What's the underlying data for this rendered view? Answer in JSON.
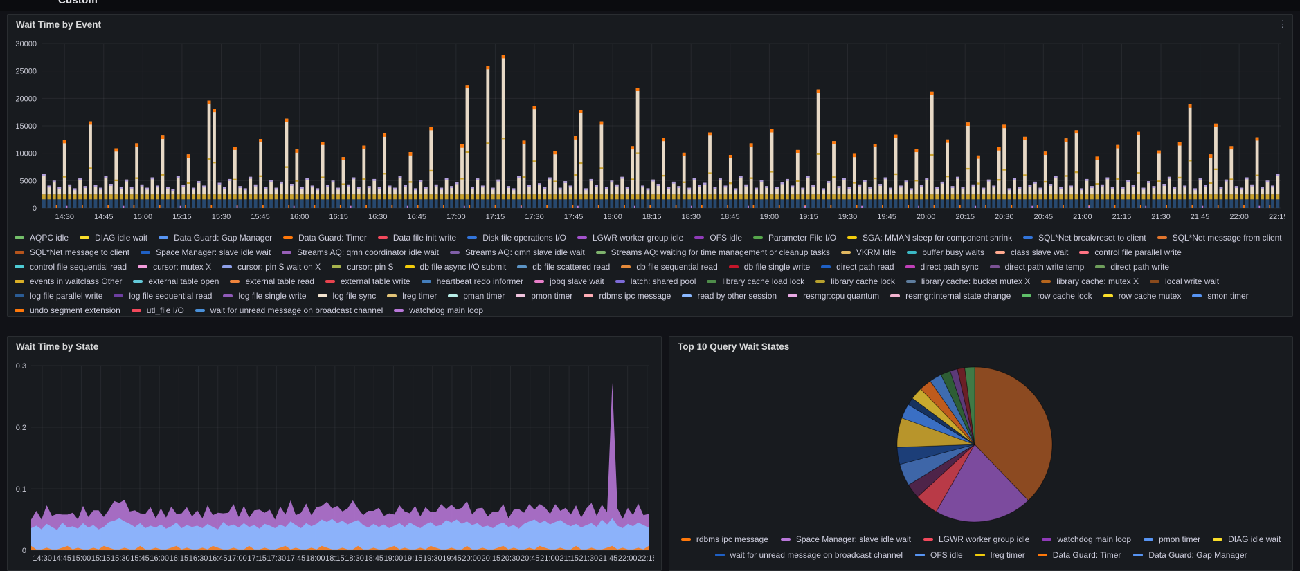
{
  "page": {
    "row_label": "Custom"
  },
  "panels": {
    "event": {
      "title": "Wait Time by Event",
      "menu_icon": "⋮"
    },
    "state": {
      "title": "Wait Time by State"
    },
    "pie": {
      "title": "Top 10 Query Wait States"
    }
  },
  "chart_data": [
    {
      "id": "wait-time-by-event",
      "type": "bar",
      "title": "Wait Time by Event",
      "xlabel": "",
      "ylabel": "",
      "ylim": [
        0,
        30000
      ],
      "y_ticks": [
        30000,
        25000,
        20000,
        15000,
        10000,
        5000,
        0
      ],
      "x_ticks": [
        "14:30",
        "14:45",
        "15:00",
        "15:15",
        "15:30",
        "15:45",
        "16:00",
        "16:15",
        "16:30",
        "16:45",
        "17:00",
        "17:15",
        "17:30",
        "17:45",
        "18:00",
        "18:15",
        "18:30",
        "18:45",
        "19:00",
        "19:15",
        "19:30",
        "19:45",
        "20:00",
        "20:15",
        "20:30",
        "20:45",
        "21:00",
        "21:15",
        "21:30",
        "21:45",
        "22:00",
        "22:15"
      ],
      "grid": true,
      "legend_position": "bottom",
      "bar_values": [
        6200,
        4100,
        5000,
        3800,
        12400,
        4300,
        3600,
        5400,
        4000,
        15800,
        4200,
        3700,
        5900,
        4400,
        10900,
        3800,
        5200,
        3900,
        11800,
        4300,
        3700,
        5600,
        4100,
        13200,
        3900,
        3500,
        5800,
        4200,
        9800,
        3700,
        4900,
        4100,
        19600,
        18100,
        4600,
        3800,
        5300,
        11200,
        4000,
        3600,
        5700,
        4300,
        12600,
        3900,
        5100,
        3700,
        4800,
        16300,
        4400,
        10700,
        3800,
        5500,
        4100,
        3600,
        12100,
        4200,
        5000,
        3700,
        9300,
        4300,
        5600,
        3900,
        11400,
        4000,
        5300,
        3800,
        13600,
        4100,
        3700,
        5900,
        4200,
        10200,
        3600,
        5100,
        3900,
        14800,
        4300,
        3700,
        5500,
        4000,
        4700,
        11600,
        22400,
        3900,
        5400,
        4100,
        25900,
        3700,
        5200,
        27900,
        4000,
        3600,
        5800,
        12300,
        4200,
        18600,
        4500,
        3800,
        5600,
        10400,
        3700,
        4900,
        4100,
        13100,
        17900,
        3600,
        5300,
        4200,
        15800,
        3800,
        5000,
        4300,
        5700,
        3900,
        11300,
        21900,
        4100,
        3600,
        5200,
        4400,
        12800,
        3800,
        4800,
        4000,
        10100,
        3700,
        5500,
        4200,
        4600,
        13800,
        3800,
        5400,
        4100,
        9700,
        3600,
        5900,
        4300,
        11800,
        3700,
        5100,
        4000,
        14400,
        3900,
        4700,
        5300,
        4100,
        10600,
        3700,
        5800,
        4200,
        21600,
        3600,
        4900,
        12200,
        4000,
        5500,
        3800,
        9900,
        4300,
        5100,
        3900,
        11700,
        4400,
        5600,
        3700,
        13400,
        4100,
        5000,
        3600,
        10800,
        4200,
        5400,
        21200,
        3800,
        4800,
        12500,
        4000,
        5700,
        3900,
        15600,
        4300,
        9600,
        3700,
        5200,
        4100,
        11100,
        15200,
        3600,
        5500,
        3900,
        13000,
        4200,
        4800,
        3700,
        10300,
        4400,
        5900,
        3800,
        12700,
        4100,
        14200,
        3600,
        5300,
        4000,
        9400,
        4300,
        5600,
        3900,
        11500,
        3800,
        5100,
        4200,
        13900,
        3700,
        4900,
        4000,
        10500,
        4400,
        5700,
        3900,
        12000,
        4100,
        18900,
        3600,
        5400,
        4200,
        9800,
        15400,
        3800,
        5200,
        11300,
        4000,
        3700,
        5600,
        4300,
        12900,
        3900,
        5000,
        4100,
        6200
      ],
      "stack_colors": {
        "navy": "#27486E",
        "gold": "#C9A22E",
        "cream": "#E7D9C6",
        "lavender_cap": "#B3A0DC",
        "orange_cap": "#FF780A",
        "orange_tick": "#FF780A",
        "purple_tick": "#C77ED6"
      },
      "series_legend": [
        {
          "label": "AQPC idle",
          "color": "#73BF69"
        },
        {
          "label": "DIAG idle wait",
          "color": "#FADE2A"
        },
        {
          "label": "Data Guard: Gap Manager",
          "color": "#5794F2"
        },
        {
          "label": "Data Guard: Timer",
          "color": "#FF780A"
        },
        {
          "label": "Data file init write",
          "color": "#F2495C"
        },
        {
          "label": "Disk file operations I/O",
          "color": "#3274D9"
        },
        {
          "label": "LGWR worker group idle",
          "color": "#A352CC"
        },
        {
          "label": "OFS idle",
          "color": "#8F3BB8"
        },
        {
          "label": "Parameter File I/O",
          "color": "#56A64B"
        },
        {
          "label": "SGA: MMAN sleep for component shrink",
          "color": "#F2CC0C"
        },
        {
          "label": "SQL*Net break/reset to client",
          "color": "#3274D9"
        },
        {
          "label": "SQL*Net message from client",
          "color": "#E0752D"
        },
        {
          "label": "SQL*Net message to client",
          "color": "#B5541C"
        },
        {
          "label": "Space Manager: slave idle wait",
          "color": "#1F60C4"
        },
        {
          "label": "Streams AQ: qmn coordinator idle wait",
          "color": "#975FB8"
        },
        {
          "label": "Streams AQ: qmn slave idle wait",
          "color": "#7F5EA8"
        },
        {
          "label": "Streams AQ: waiting for time management or cleanup tasks",
          "color": "#7EB26D"
        },
        {
          "label": "VKRM Idle",
          "color": "#E0B760"
        },
        {
          "label": "buffer busy waits",
          "color": "#3BB8C4"
        },
        {
          "label": "class slave wait",
          "color": "#FFA98F"
        },
        {
          "label": "control file parallel write",
          "color": "#FF7383"
        },
        {
          "label": "control file sequential read",
          "color": "#4ECBD4"
        },
        {
          "label": "cursor: mutex X",
          "color": "#F29BDB"
        },
        {
          "label": "cursor: pin S wait on X",
          "color": "#8E9FE8"
        },
        {
          "label": "cursor: pin S",
          "color": "#A7B34D"
        },
        {
          "label": "db file async I/O submit",
          "color": "#F2CC0C"
        },
        {
          "label": "db file scattered read",
          "color": "#5B93C4"
        },
        {
          "label": "db file sequential read",
          "color": "#E58A3A"
        },
        {
          "label": "db file single write",
          "color": "#C4162A"
        },
        {
          "label": "direct path read",
          "color": "#1F60C4"
        },
        {
          "label": "direct path sync",
          "color": "#C040B8"
        },
        {
          "label": "direct path write temp",
          "color": "#7C5295"
        },
        {
          "label": "direct path write",
          "color": "#6E9E5B"
        },
        {
          "label": "events in waitclass Other",
          "color": "#D9AF27"
        },
        {
          "label": "external table open",
          "color": "#63C8D8"
        },
        {
          "label": "external table read",
          "color": "#EF843C"
        },
        {
          "label": "external table write",
          "color": "#E8434E"
        },
        {
          "label": "heartbeat redo informer",
          "color": "#447EBC"
        },
        {
          "label": "jobq slave wait",
          "color": "#E87FC9"
        },
        {
          "label": "latch: shared pool",
          "color": "#7D6BD8"
        },
        {
          "label": "library cache load lock",
          "color": "#4E8C4A"
        },
        {
          "label": "library cache lock",
          "color": "#B7A12E"
        },
        {
          "label": "library cache: bucket mutex X",
          "color": "#5E7D9E"
        },
        {
          "label": "library cache: mutex X",
          "color": "#B5651D"
        },
        {
          "label": "local write wait",
          "color": "#8A4A1C"
        },
        {
          "label": "log file parallel write",
          "color": "#2B5C94"
        },
        {
          "label": "log file sequential read",
          "color": "#6D3FA0"
        },
        {
          "label": "log file single write",
          "color": "#8F5AB8"
        },
        {
          "label": "log file sync",
          "color": "#F2E2CE"
        },
        {
          "label": "lreg timer",
          "color": "#E2C377"
        },
        {
          "label": "pman timer",
          "color": "#B8EDE6"
        },
        {
          "label": "pmon timer",
          "color": "#EFC3DD"
        },
        {
          "label": "rdbms ipc message",
          "color": "#FFADB5"
        },
        {
          "label": "read by other session",
          "color": "#8AB8FF"
        },
        {
          "label": "resmgr:cpu quantum",
          "color": "#E8A9E3"
        },
        {
          "label": "resmgr:internal state change",
          "color": "#F2B3CE"
        },
        {
          "label": "row cache lock",
          "color": "#5FBF69"
        },
        {
          "label": "row cache mutex",
          "color": "#FADE2A"
        },
        {
          "label": "smon timer",
          "color": "#5794F2"
        },
        {
          "label": "undo segment extension",
          "color": "#FF780A"
        },
        {
          "label": "utl_file I/O",
          "color": "#F2495C"
        },
        {
          "label": "wait for unread message on broadcast channel",
          "color": "#4A90D9"
        },
        {
          "label": "watchdog main loop",
          "color": "#B877D9"
        }
      ]
    },
    {
      "id": "wait-time-by-state",
      "type": "area",
      "title": "Wait Time by State",
      "xlabel": "",
      "ylabel": "",
      "ylim": [
        0,
        0.3
      ],
      "y_ticks": [
        0.3,
        0.2,
        0.1,
        0
      ],
      "x_ticks": [
        "14:30",
        "14:45",
        "15:00",
        "15:15",
        "15:30",
        "15:45",
        "16:00",
        "16:15",
        "16:30",
        "16:45",
        "17:00",
        "17:15",
        "17:30",
        "17:45",
        "18:00",
        "18:15",
        "18:30",
        "18:45",
        "19:00",
        "19:15",
        "19:30",
        "19:45",
        "20:00",
        "20:15",
        "20:30",
        "20:45",
        "21:00",
        "21:15",
        "21:30",
        "21:45",
        "22:00",
        "22:15"
      ],
      "grid": true,
      "series": [
        {
          "color": "#8AB8FF",
          "values": [
            0.036,
            0.04,
            0.034,
            0.043,
            0.038,
            0.033,
            0.045,
            0.037,
            0.039,
            0.035,
            0.044,
            0.037,
            0.041,
            0.034,
            0.038,
            0.046,
            0.048,
            0.052,
            0.047,
            0.043,
            0.038,
            0.044,
            0.036,
            0.04,
            0.037,
            0.042,
            0.035,
            0.039,
            0.045,
            0.036,
            0.041,
            0.038,
            0.04,
            0.036,
            0.043,
            0.038,
            0.034,
            0.046,
            0.039,
            0.042,
            0.037,
            0.044,
            0.038,
            0.041,
            0.035,
            0.043,
            0.04,
            0.036,
            0.042,
            0.038,
            0.047,
            0.041,
            0.036,
            0.044,
            0.039,
            0.043,
            0.05,
            0.046,
            0.051,
            0.044,
            0.048,
            0.042,
            0.046,
            0.049,
            0.041,
            0.037,
            0.043,
            0.038,
            0.042,
            0.036,
            0.04,
            0.044,
            0.038,
            0.045,
            0.04,
            0.036,
            0.042,
            0.046,
            0.039,
            0.041,
            0.049,
            0.045,
            0.05,
            0.043,
            0.047,
            0.041,
            0.044,
            0.038,
            0.04,
            0.036,
            0.042,
            0.045,
            0.038,
            0.041,
            0.035,
            0.043,
            0.047,
            0.05,
            0.044,
            0.048,
            0.042,
            0.046,
            0.049,
            0.043,
            0.039,
            0.043,
            0.037,
            0.041,
            0.044,
            0.038,
            0.05,
            0.042,
            0.052,
            0.04,
            0.036,
            0.043,
            0.039,
            0.045,
            0.041,
            0.037
          ]
        },
        {
          "color": "#B877D9",
          "values": [
            0.014,
            0.024,
            0.016,
            0.03,
            0.018,
            0.026,
            0.013,
            0.021,
            0.022,
            0.015,
            0.028,
            0.017,
            0.024,
            0.031,
            0.016,
            0.02,
            0.032,
            0.025,
            0.035,
            0.02,
            0.027,
            0.016,
            0.023,
            0.03,
            0.015,
            0.026,
            0.018,
            0.032,
            0.014,
            0.024,
            0.029,
            0.017,
            0.025,
            0.016,
            0.03,
            0.019,
            0.027,
            0.014,
            0.022,
            0.033,
            0.017,
            0.028,
            0.015,
            0.024,
            0.031,
            0.018,
            0.026,
            0.014,
            0.029,
            0.02,
            0.034,
            0.016,
            0.025,
            0.032,
            0.018,
            0.027,
            0.022,
            0.033,
            0.017,
            0.028,
            0.015,
            0.026,
            0.035,
            0.019,
            0.016,
            0.027,
            0.021,
            0.031,
            0.014,
            0.024,
            0.018,
            0.029,
            0.025,
            0.015,
            0.032,
            0.019,
            0.028,
            0.016,
            0.023,
            0.034,
            0.018,
            0.029,
            0.016,
            0.026,
            0.033,
            0.017,
            0.024,
            0.031,
            0.015,
            0.027,
            0.02,
            0.03,
            0.014,
            0.025,
            0.032,
            0.018,
            0.028,
            0.016,
            0.031,
            0.022,
            0.017,
            0.029,
            0.015,
            0.026,
            0.019,
            0.03,
            0.016,
            0.027,
            0.033,
            0.018,
            0.024,
            0.02,
            0.22,
            0.028,
            0.015,
            0.026,
            0.018,
            0.031,
            0.016,
            0.022
          ]
        }
      ],
      "accent_fleck_color": "#FF780A"
    },
    {
      "id": "top10-query-wait-states",
      "type": "pie",
      "title": "Top 10 Query Wait States",
      "slices": [
        {
          "label": "rdbms ipc message",
          "value": 37,
          "color": "#8C4A21"
        },
        {
          "label": "Space Manager: slave idle wait",
          "value": 20,
          "color": "#7C4B9E"
        },
        {
          "label": "LGWR worker group idle",
          "value": 4.8,
          "color": "#B93A47"
        },
        {
          "label": "watchdog main loop",
          "value": 3,
          "color": "#4E2449"
        },
        {
          "label": "pmon timer",
          "value": 4.5,
          "color": "#3E66A8"
        },
        {
          "label": "wait for unread message on broadcast channel",
          "value": 3.5,
          "color": "#1C3E78"
        },
        {
          "label": "DIAG idle wait",
          "value": 6,
          "color": "#B8952B"
        },
        {
          "label": "OFS idle",
          "value": 3,
          "color": "#3A6FC4"
        },
        {
          "label": "",
          "value": 1.5,
          "color": "#16325E"
        },
        {
          "label": "lreg timer",
          "value": 2.5,
          "color": "#C8A92E"
        },
        {
          "label": "Data Guard: Timer",
          "value": 2.5,
          "color": "#BF5B1D"
        },
        {
          "label": "Data Guard: Gap Manager",
          "value": 2.5,
          "color": "#3E6CB0"
        },
        {
          "label": "",
          "value": 2,
          "color": "#2E5E35"
        },
        {
          "label": "",
          "value": 1.5,
          "color": "#5C3A78"
        },
        {
          "label": "",
          "value": 1.5,
          "color": "#6B1F26"
        },
        {
          "label": "",
          "value": 2,
          "color": "#3F7A46"
        }
      ],
      "legend_rows": [
        [
          {
            "label": "rdbms ipc message",
            "color": "#FF780A"
          },
          {
            "label": "Space Manager: slave idle wait",
            "color": "#B877D9"
          },
          {
            "label": "LGWR worker group idle",
            "color": "#F2495C"
          },
          {
            "label": "watchdog main loop",
            "color": "#8F3BB8"
          },
          {
            "label": "pmon timer",
            "color": "#5794F2"
          },
          {
            "label": "DIAG idle wait",
            "color": "#FADE2A"
          }
        ],
        [
          {
            "label": "wait for unread message on broadcast channel",
            "color": "#1F60C4"
          },
          {
            "label": "OFS idle",
            "color": "#5794F2"
          },
          {
            "label": "lreg timer",
            "color": "#F2CC0C"
          },
          {
            "label": "Data Guard: Timer",
            "color": "#FF780A"
          },
          {
            "label": "Data Guard: Gap Manager",
            "color": "#5794F2"
          }
        ]
      ]
    }
  ]
}
